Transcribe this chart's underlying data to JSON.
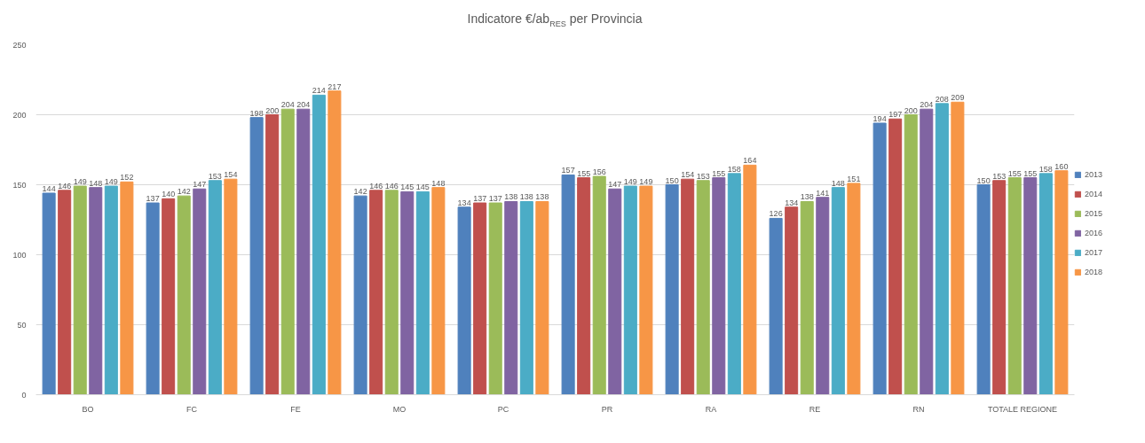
{
  "chart_data": {
    "type": "bar",
    "title": "Indicatore €/ab$_{RES}$ per Provincia",
    "categories": [
      "BO",
      "FC",
      "FE",
      "MO",
      "PC",
      "PR",
      "RA",
      "RE",
      "RN",
      "TOTALE REGIONE"
    ],
    "series": [
      {
        "name": "2013",
        "color": "#4f81bd",
        "values": [
          144,
          137,
          198,
          142,
          134,
          157,
          150,
          126,
          194,
          150
        ]
      },
      {
        "name": "2014",
        "color": "#c0504d",
        "values": [
          146,
          140,
          200,
          146,
          137,
          155,
          154,
          134,
          197,
          153
        ]
      },
      {
        "name": "2015",
        "color": "#9bbb59",
        "values": [
          149,
          142,
          204,
          146,
          137,
          156,
          153,
          138,
          200,
          155
        ]
      },
      {
        "name": "2016",
        "color": "#8064a2",
        "values": [
          148,
          147,
          204,
          145,
          138,
          147,
          155,
          141,
          204,
          155
        ]
      },
      {
        "name": "2017",
        "color": "#4bacc6",
        "values": [
          149,
          153,
          214,
          145,
          138,
          149,
          158,
          148,
          208,
          158
        ]
      },
      {
        "name": "2018",
        "color": "#f79646",
        "values": [
          152,
          154,
          217,
          148,
          138,
          149,
          164,
          151,
          209,
          160
        ]
      }
    ],
    "ylim": [
      0,
      250
    ],
    "yticks": [
      0,
      50,
      100,
      150,
      200,
      250
    ],
    "grid": "y",
    "legend": "right",
    "data_labels": true
  }
}
